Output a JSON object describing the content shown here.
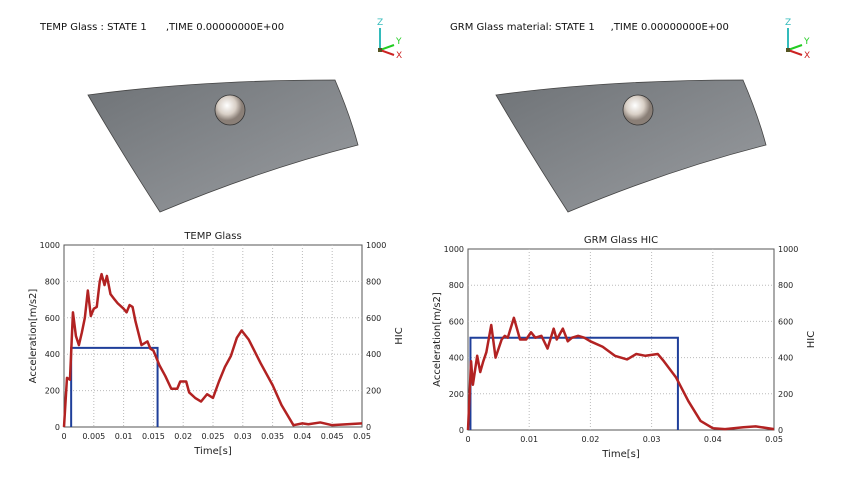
{
  "views": [
    {
      "title": "TEMP Glass : STATE 1      ,TIME 0.00000000E+00"
    },
    {
      "title": "GRM Glass material: STATE 1     ,TIME 0.00000000E+00"
    }
  ],
  "axis_labels": {
    "z": "Z",
    "y": "Y",
    "x": "X"
  },
  "colors": {
    "accel": "#b22222",
    "hic": "#1f3f9a",
    "glass": "#7d8085"
  },
  "chart_data": [
    {
      "type": "line",
      "title": "TEMP Glass",
      "xlabel": "Time[s]",
      "ylabel": "Acceleration[m/s2]",
      "y2label": "HIC",
      "xlim": [
        0,
        0.05
      ],
      "ylim": [
        0,
        1000
      ],
      "y2lim": [
        0,
        1000
      ],
      "grid": true,
      "xticks": [
        "0",
        "0.005",
        "0.01",
        "0.015",
        "0.02",
        "0.025",
        "0.03",
        "0.035",
        "0.04",
        "0.045",
        "0.05"
      ],
      "xtickvals": [
        0,
        0.005,
        0.01,
        0.015,
        0.02,
        0.025,
        0.03,
        0.035,
        0.04,
        0.045,
        0.05
      ],
      "yticks": [
        "0",
        "200",
        "400",
        "600",
        "800",
        "1000"
      ],
      "accel": [
        [
          0,
          0
        ],
        [
          0.0005,
          270
        ],
        [
          0.001,
          260
        ],
        [
          0.0015,
          630
        ],
        [
          0.002,
          500
        ],
        [
          0.0025,
          450
        ],
        [
          0.003,
          520
        ],
        [
          0.0035,
          600
        ],
        [
          0.004,
          750
        ],
        [
          0.0045,
          610
        ],
        [
          0.005,
          650
        ],
        [
          0.0055,
          660
        ],
        [
          0.006,
          800
        ],
        [
          0.0063,
          840
        ],
        [
          0.0068,
          780
        ],
        [
          0.0072,
          830
        ],
        [
          0.0078,
          730
        ],
        [
          0.0085,
          700
        ],
        [
          0.009,
          680
        ],
        [
          0.01,
          650
        ],
        [
          0.0105,
          630
        ],
        [
          0.011,
          670
        ],
        [
          0.0115,
          660
        ],
        [
          0.012,
          580
        ],
        [
          0.013,
          450
        ],
        [
          0.014,
          470
        ],
        [
          0.0145,
          430
        ],
        [
          0.015,
          420
        ],
        [
          0.016,
          340
        ],
        [
          0.017,
          280
        ],
        [
          0.018,
          210
        ],
        [
          0.019,
          210
        ],
        [
          0.0195,
          250
        ],
        [
          0.0205,
          250
        ],
        [
          0.021,
          190
        ],
        [
          0.022,
          160
        ],
        [
          0.023,
          140
        ],
        [
          0.024,
          180
        ],
        [
          0.025,
          160
        ],
        [
          0.026,
          250
        ],
        [
          0.027,
          330
        ],
        [
          0.028,
          390
        ],
        [
          0.029,
          490
        ],
        [
          0.0298,
          530
        ],
        [
          0.031,
          480
        ],
        [
          0.033,
          350
        ],
        [
          0.035,
          230
        ],
        [
          0.0365,
          120
        ],
        [
          0.0385,
          10
        ],
        [
          0.04,
          20
        ],
        [
          0.041,
          15
        ],
        [
          0.043,
          25
        ],
        [
          0.045,
          10
        ],
        [
          0.05,
          20
        ]
      ],
      "hic": {
        "t1": 0.0012,
        "t2": 0.0157,
        "value": 435
      }
    },
    {
      "type": "line",
      "title": "GRM Glass HIC",
      "xlabel": "Time[s]",
      "ylabel": "Acceleration[m/s2]",
      "y2label": "HIC",
      "xlim": [
        0,
        0.05
      ],
      "ylim": [
        0,
        1000
      ],
      "y2lim": [
        0,
        1000
      ],
      "grid": true,
      "xticks": [
        "0",
        "0.01",
        "0.02",
        "0.03",
        "0.04",
        "0.05"
      ],
      "xtickvals": [
        0,
        0.01,
        0.02,
        0.03,
        0.04,
        0.05
      ],
      "yticks": [
        "0",
        "200",
        "400",
        "600",
        "800",
        "1000"
      ],
      "accel": [
        [
          0,
          0
        ],
        [
          0.0005,
          380
        ],
        [
          0.0008,
          250
        ],
        [
          0.0015,
          410
        ],
        [
          0.002,
          320
        ],
        [
          0.0025,
          380
        ],
        [
          0.003,
          430
        ],
        [
          0.0038,
          580
        ],
        [
          0.0045,
          400
        ],
        [
          0.0055,
          500
        ],
        [
          0.006,
          520
        ],
        [
          0.0065,
          510
        ],
        [
          0.0075,
          620
        ],
        [
          0.0085,
          500
        ],
        [
          0.0095,
          500
        ],
        [
          0.0103,
          540
        ],
        [
          0.011,
          510
        ],
        [
          0.012,
          520
        ],
        [
          0.013,
          450
        ],
        [
          0.014,
          560
        ],
        [
          0.0145,
          500
        ],
        [
          0.0155,
          560
        ],
        [
          0.0163,
          490
        ],
        [
          0.017,
          510
        ],
        [
          0.018,
          520
        ],
        [
          0.019,
          510
        ],
        [
          0.02,
          490
        ],
        [
          0.022,
          460
        ],
        [
          0.024,
          410
        ],
        [
          0.026,
          390
        ],
        [
          0.0275,
          420
        ],
        [
          0.029,
          410
        ],
        [
          0.031,
          420
        ],
        [
          0.032,
          380
        ],
        [
          0.034,
          290
        ],
        [
          0.036,
          160
        ],
        [
          0.038,
          50
        ],
        [
          0.04,
          10
        ],
        [
          0.042,
          5
        ],
        [
          0.045,
          15
        ],
        [
          0.047,
          20
        ],
        [
          0.05,
          5
        ]
      ],
      "hic": {
        "t1": 0.0004,
        "t2": 0.0343,
        "value": 510
      }
    }
  ]
}
